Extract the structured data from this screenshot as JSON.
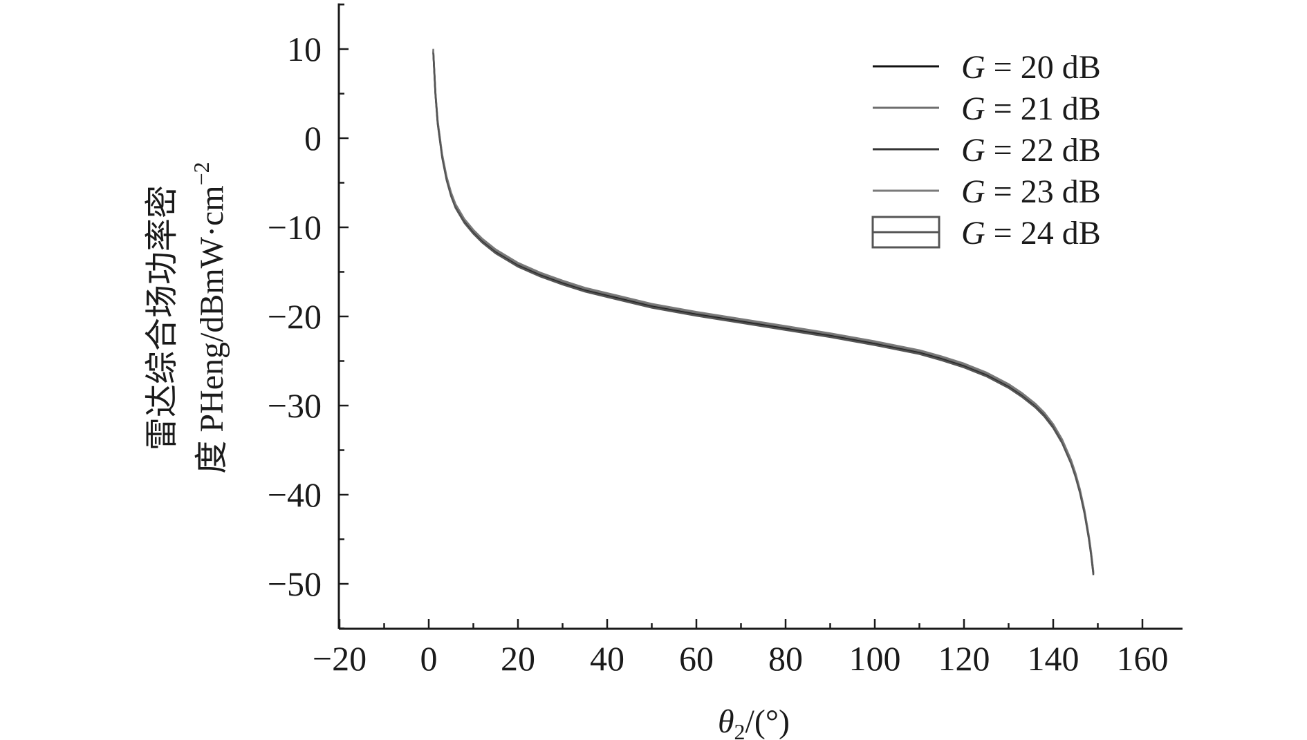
{
  "chart_data": {
    "type": "line",
    "xlabel_symbol": "θ",
    "xlabel_subscript": "2",
    "xlabel_unit": "/(°)",
    "ylabel_line1": "雷达综合场功率密",
    "ylabel_line2_prefix": "度 PHeng/dBmW·cm",
    "ylabel_line2_superscript": "−2",
    "xlim": [
      -20,
      170
    ],
    "ylim": [
      -55,
      15
    ],
    "xticks": [
      -20,
      0,
      20,
      40,
      60,
      80,
      100,
      120,
      140,
      160
    ],
    "xtick_labels": [
      "−20",
      "0",
      "20",
      "40",
      "60",
      "80",
      "100",
      "120",
      "140",
      "160"
    ],
    "yticks": [
      10,
      0,
      -10,
      -20,
      -30,
      -40,
      -50
    ],
    "ytick_labels": [
      "10",
      "0",
      "−10",
      "−20",
      "−30",
      "−40",
      "−50"
    ],
    "x": [
      1,
      1.5,
      2,
      3,
      4,
      5,
      6,
      8,
      10,
      12,
      15,
      20,
      25,
      30,
      35,
      40,
      50,
      60,
      70,
      80,
      90,
      100,
      110,
      115,
      120,
      125,
      130,
      133,
      136,
      138,
      140,
      142,
      144,
      145,
      146,
      147,
      148,
      148.5,
      149
    ],
    "y": [
      9.8,
      5.0,
      1.8,
      -2.0,
      -4.5,
      -6.3,
      -7.6,
      -9.3,
      -10.5,
      -11.5,
      -12.7,
      -14.2,
      -15.3,
      -16.2,
      -17.0,
      -17.6,
      -18.8,
      -19.7,
      -20.5,
      -21.3,
      -22.1,
      -23.0,
      -24.0,
      -24.7,
      -25.5,
      -26.5,
      -27.8,
      -28.8,
      -30.0,
      -31.0,
      -32.3,
      -34.0,
      -36.3,
      -37.8,
      -39.6,
      -41.9,
      -44.8,
      -46.6,
      -48.8
    ],
    "series": [
      {
        "name_symbol": "G",
        "name_rest": " = 20 dB",
        "color": "#111111",
        "offset": 0.0
      },
      {
        "name_symbol": "G",
        "name_rest": " = 21 dB",
        "color": "#6e6e6e",
        "offset": 0.12
      },
      {
        "name_symbol": "G",
        "name_rest": " = 22 dB",
        "color": "#333333",
        "offset": -0.12
      },
      {
        "name_symbol": "G",
        "name_rest": " = 23 dB",
        "color": "#7a7a7a",
        "offset": 0.22
      },
      {
        "name_symbol": "G",
        "name_rest": " = 24 dB",
        "color": "#555555",
        "offset": -0.22
      }
    ],
    "legend_position": "top-right",
    "grid": false
  }
}
